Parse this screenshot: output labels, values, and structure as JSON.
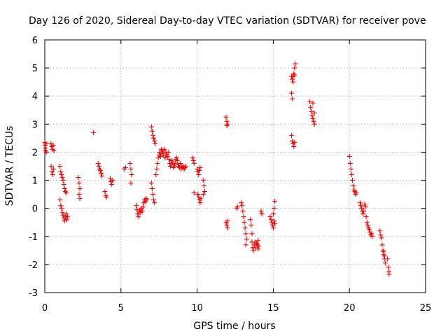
{
  "chart_data": {
    "type": "scatter",
    "title": "Day 126 of 2020, Sidereal Day-to-day VTEC variation (SDTVAR) for receiver pove",
    "xlabel": "GPS time / hours",
    "ylabel": "SDTVAR / TECUs",
    "xlim": [
      0,
      25
    ],
    "ylim": [
      -3,
      6
    ],
    "xticks": [
      0,
      5,
      10,
      15,
      20,
      25
    ],
    "yticks": [
      -3,
      -2,
      -1,
      0,
      1,
      2,
      3,
      4,
      5,
      6
    ],
    "xtick_labels": [
      "0",
      "5",
      "10",
      "15",
      "20",
      "25"
    ],
    "ytick_labels": [
      "-3",
      "-2",
      "-1",
      "0",
      "1",
      "2",
      "3",
      "4",
      "5",
      "6"
    ],
    "grid": true,
    "marker": "+",
    "color": "#ff0000",
    "series": [
      {
        "name": "SDTVAR",
        "points": [
          [
            0.0,
            2.35
          ],
          [
            0.02,
            2.25
          ],
          [
            0.04,
            2.15
          ],
          [
            0.06,
            2.05
          ],
          [
            0.08,
            2.3
          ],
          [
            0.1,
            2.0
          ],
          [
            0.4,
            2.3
          ],
          [
            0.45,
            2.2
          ],
          [
            0.5,
            2.1
          ],
          [
            0.55,
            2.25
          ],
          [
            0.6,
            2.05
          ],
          [
            0.42,
            1.5
          ],
          [
            0.47,
            1.3
          ],
          [
            0.52,
            1.2
          ],
          [
            0.57,
            1.4
          ],
          [
            1.0,
            1.5
          ],
          [
            1.05,
            1.3
          ],
          [
            1.1,
            1.2
          ],
          [
            1.15,
            1.1
          ],
          [
            1.2,
            1.0
          ],
          [
            1.25,
            0.85
          ],
          [
            1.3,
            0.7
          ],
          [
            1.35,
            0.6
          ],
          [
            1.4,
            0.55
          ],
          [
            1.0,
            0.3
          ],
          [
            1.05,
            0.1
          ],
          [
            1.1,
            0.0
          ],
          [
            1.15,
            -0.15
          ],
          [
            1.2,
            -0.25
          ],
          [
            1.25,
            -0.35
          ],
          [
            1.3,
            -0.45
          ],
          [
            1.35,
            -0.3
          ],
          [
            1.4,
            -0.2
          ],
          [
            1.45,
            -0.4
          ],
          [
            1.5,
            -0.3
          ],
          [
            2.2,
            1.1
          ],
          [
            2.25,
            0.9
          ],
          [
            2.3,
            0.7
          ],
          [
            2.25,
            0.5
          ],
          [
            2.3,
            0.35
          ],
          [
            3.2,
            2.7
          ],
          [
            3.5,
            1.6
          ],
          [
            3.55,
            1.5
          ],
          [
            3.6,
            1.4
          ],
          [
            3.65,
            1.35
          ],
          [
            3.7,
            1.25
          ],
          [
            3.75,
            1.15
          ],
          [
            3.95,
            0.6
          ],
          [
            4.0,
            0.45
          ],
          [
            4.05,
            0.4
          ],
          [
            4.3,
            1.05
          ],
          [
            4.35,
            0.95
          ],
          [
            4.4,
            0.85
          ],
          [
            4.45,
            1.0
          ],
          [
            5.2,
            1.4
          ],
          [
            5.3,
            1.45
          ],
          [
            5.6,
            1.6
          ],
          [
            5.65,
            1.4
          ],
          [
            5.7,
            1.2
          ],
          [
            5.65,
            0.9
          ],
          [
            6.0,
            0.1
          ],
          [
            6.05,
            -0.05
          ],
          [
            6.1,
            -0.2
          ],
          [
            6.15,
            -0.3
          ],
          [
            6.2,
            -0.1
          ],
          [
            6.25,
            -0.05
          ],
          [
            6.3,
            -0.15
          ],
          [
            6.35,
            0.0
          ],
          [
            6.4,
            -0.1
          ],
          [
            6.45,
            0.05
          ],
          [
            6.5,
            0.2
          ],
          [
            6.55,
            0.3
          ],
          [
            6.6,
            0.25
          ],
          [
            6.65,
            0.35
          ],
          [
            6.7,
            0.3
          ],
          [
            7.0,
            2.9
          ],
          [
            7.05,
            2.75
          ],
          [
            7.1,
            2.6
          ],
          [
            7.15,
            2.5
          ],
          [
            7.2,
            2.4
          ],
          [
            7.25,
            2.3
          ],
          [
            7.0,
            0.9
          ],
          [
            7.05,
            0.7
          ],
          [
            7.1,
            0.5
          ],
          [
            7.15,
            0.3
          ],
          [
            7.2,
            0.2
          ],
          [
            7.3,
            1.2
          ],
          [
            7.35,
            1.4
          ],
          [
            7.4,
            1.6
          ],
          [
            7.45,
            1.8
          ],
          [
            7.5,
            1.9
          ],
          [
            7.55,
            2.0
          ],
          [
            7.6,
            1.85
          ],
          [
            7.65,
            2.1
          ],
          [
            7.7,
            1.95
          ],
          [
            7.75,
            2.05
          ],
          [
            7.8,
            1.9
          ],
          [
            7.85,
            2.1
          ],
          [
            7.9,
            1.8
          ],
          [
            7.95,
            2.0
          ],
          [
            8.0,
            1.9
          ],
          [
            8.05,
            1.85
          ],
          [
            8.1,
            2.0
          ],
          [
            8.15,
            1.75
          ],
          [
            8.2,
            1.6
          ],
          [
            8.25,
            1.5
          ],
          [
            8.3,
            1.7
          ],
          [
            8.35,
            1.55
          ],
          [
            8.4,
            1.65
          ],
          [
            8.45,
            1.45
          ],
          [
            8.5,
            1.5
          ],
          [
            8.55,
            1.6
          ],
          [
            8.6,
            1.75
          ],
          [
            8.65,
            1.8
          ],
          [
            8.7,
            1.7
          ],
          [
            8.75,
            1.55
          ],
          [
            8.8,
            1.5
          ],
          [
            8.85,
            1.45
          ],
          [
            8.9,
            1.6
          ],
          [
            8.95,
            1.4
          ],
          [
            9.0,
            1.5
          ],
          [
            9.05,
            1.45
          ],
          [
            9.1,
            1.5
          ],
          [
            9.15,
            1.4
          ],
          [
            9.2,
            1.45
          ],
          [
            9.25,
            1.5
          ],
          [
            9.7,
            1.8
          ],
          [
            9.75,
            1.7
          ],
          [
            9.8,
            1.6
          ],
          [
            9.8,
            0.55
          ],
          [
            10.0,
            1.4
          ],
          [
            10.05,
            1.3
          ],
          [
            10.1,
            1.2
          ],
          [
            10.15,
            1.35
          ],
          [
            10.2,
            1.45
          ],
          [
            10.05,
            0.5
          ],
          [
            10.1,
            0.4
          ],
          [
            10.15,
            0.3
          ],
          [
            10.2,
            0.2
          ],
          [
            10.25,
            0.35
          ],
          [
            10.4,
            1.0
          ],
          [
            10.45,
            0.8
          ],
          [
            10.5,
            0.6
          ],
          [
            10.4,
            0.5
          ],
          [
            11.9,
            3.25
          ],
          [
            11.95,
            3.1
          ],
          [
            12.0,
            3.0
          ],
          [
            11.95,
            2.95
          ],
          [
            11.9,
            -0.5
          ],
          [
            11.95,
            -0.6
          ],
          [
            12.0,
            -0.7
          ],
          [
            12.0,
            -0.45
          ],
          [
            12.6,
            0.0
          ],
          [
            12.65,
            0.05
          ],
          [
            12.9,
            0.2
          ],
          [
            12.95,
            0.1
          ],
          [
            13.0,
            -0.1
          ],
          [
            13.05,
            -0.3
          ],
          [
            13.1,
            -0.5
          ],
          [
            13.15,
            -0.7
          ],
          [
            13.2,
            -0.9
          ],
          [
            13.25,
            -1.1
          ],
          [
            13.2,
            -1.3
          ],
          [
            13.5,
            -0.4
          ],
          [
            13.55,
            -0.6
          ],
          [
            13.6,
            -0.9
          ],
          [
            13.6,
            -1.2
          ],
          [
            13.65,
            -1.4
          ],
          [
            13.7,
            -1.5
          ],
          [
            13.75,
            -1.3
          ],
          [
            13.8,
            -1.2
          ],
          [
            13.85,
            -1.4
          ],
          [
            13.9,
            -1.25
          ],
          [
            13.95,
            -1.3
          ],
          [
            14.0,
            -1.15
          ],
          [
            14.05,
            -1.35
          ],
          [
            14.0,
            -1.45
          ],
          [
            14.2,
            -0.1
          ],
          [
            14.25,
            -0.2
          ],
          [
            14.8,
            -0.3
          ],
          [
            14.85,
            -0.4
          ],
          [
            14.9,
            -0.5
          ],
          [
            14.95,
            -0.6
          ],
          [
            15.0,
            -0.7
          ],
          [
            15.05,
            -0.45
          ],
          [
            15.0,
            -0.2
          ],
          [
            15.05,
            0.0
          ],
          [
            15.1,
            0.25
          ],
          [
            15.1,
            -0.55
          ],
          [
            16.2,
            4.7
          ],
          [
            16.25,
            4.6
          ],
          [
            16.3,
            4.5
          ],
          [
            16.35,
            4.8
          ],
          [
            16.4,
            5.0
          ],
          [
            16.45,
            5.15
          ],
          [
            16.4,
            4.75
          ],
          [
            16.3,
            4.7
          ],
          [
            16.2,
            4.1
          ],
          [
            16.25,
            3.9
          ],
          [
            16.2,
            2.6
          ],
          [
            16.25,
            2.4
          ],
          [
            16.3,
            2.3
          ],
          [
            16.35,
            2.2
          ],
          [
            16.4,
            2.35
          ],
          [
            17.4,
            3.8
          ],
          [
            17.45,
            3.6
          ],
          [
            17.5,
            3.45
          ],
          [
            17.55,
            3.3
          ],
          [
            17.6,
            3.2
          ],
          [
            17.65,
            3.1
          ],
          [
            17.7,
            3.4
          ],
          [
            17.6,
            3.75
          ],
          [
            17.7,
            3.0
          ],
          [
            20.0,
            1.85
          ],
          [
            20.05,
            1.6
          ],
          [
            20.1,
            1.4
          ],
          [
            20.15,
            1.2
          ],
          [
            20.2,
            1.0
          ],
          [
            20.25,
            0.8
          ],
          [
            20.3,
            0.65
          ],
          [
            20.35,
            0.6
          ],
          [
            20.4,
            0.5
          ],
          [
            20.45,
            0.55
          ],
          [
            20.7,
            0.2
          ],
          [
            20.75,
            0.1
          ],
          [
            20.8,
            0.0
          ],
          [
            20.85,
            -0.1
          ],
          [
            20.9,
            -0.2
          ],
          [
            20.95,
            -0.1
          ],
          [
            21.0,
            0.15
          ],
          [
            21.05,
            0.05
          ],
          [
            21.1,
            -0.3
          ],
          [
            21.15,
            -0.5
          ],
          [
            21.2,
            -0.6
          ],
          [
            21.25,
            -0.7
          ],
          [
            21.3,
            -0.75
          ],
          [
            21.35,
            -0.85
          ],
          [
            21.4,
            -0.95
          ],
          [
            21.45,
            -0.9
          ],
          [
            21.5,
            -1.0
          ],
          [
            22.0,
            -0.8
          ],
          [
            22.05,
            -0.95
          ],
          [
            22.1,
            -1.05
          ],
          [
            22.15,
            -1.3
          ],
          [
            22.2,
            -1.5
          ],
          [
            22.25,
            -1.65
          ],
          [
            22.3,
            -1.8
          ],
          [
            22.35,
            -1.95
          ],
          [
            22.3,
            -1.7
          ],
          [
            22.25,
            -1.55
          ],
          [
            22.5,
            -1.8
          ],
          [
            22.55,
            -2.1
          ],
          [
            22.6,
            -2.25
          ],
          [
            22.6,
            -2.35
          ]
        ]
      }
    ]
  }
}
